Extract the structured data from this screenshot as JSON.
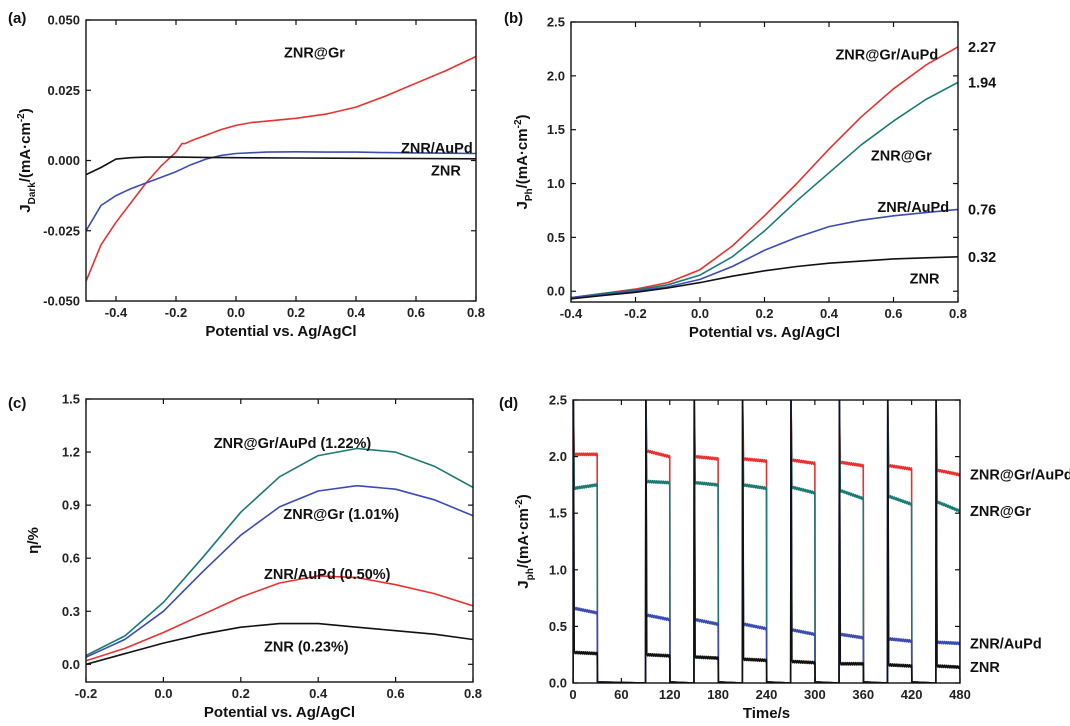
{
  "chart_data": [
    {
      "panel": "(a)",
      "type": "line",
      "ylabel_main": "J",
      "ylabel_sub": "Dark",
      "ylabel_rest": "/(mA·cm",
      "ylabel_sup": "-2",
      "ylabel_end": ")",
      "xlabel": "Potential vs. Ag/AgCl",
      "xlim": [
        -0.5,
        0.8
      ],
      "ylim": [
        -0.05,
        0.05
      ],
      "xticks": [
        -0.4,
        -0.2,
        0.0,
        0.2,
        0.4,
        0.6,
        0.8
      ],
      "xtick_labels": [
        "-0.4",
        "-0.2",
        "0.0",
        "0.2",
        "0.4",
        "0.6",
        "0.8"
      ],
      "yticks": [
        -0.05,
        -0.025,
        0.0,
        0.025,
        0.05
      ],
      "ytick_labels": [
        "-0.050",
        "-0.025",
        "0.000",
        "0.025",
        "0.050"
      ],
      "series": [
        {
          "name": "ZNR@Gr",
          "color": "#e8312f",
          "x": [
            -0.5,
            -0.45,
            -0.4,
            -0.35,
            -0.3,
            -0.25,
            -0.2,
            -0.18,
            -0.17,
            -0.15,
            -0.1,
            -0.05,
            0.0,
            0.05,
            0.1,
            0.2,
            0.3,
            0.4,
            0.5,
            0.6,
            0.7,
            0.8
          ],
          "y": [
            -0.043,
            -0.03,
            -0.022,
            -0.015,
            -0.008,
            -0.002,
            0.003,
            0.006,
            0.006,
            0.007,
            0.009,
            0.011,
            0.0125,
            0.0135,
            0.014,
            0.015,
            0.0165,
            0.019,
            0.023,
            0.0275,
            0.032,
            0.037
          ]
        },
        {
          "name": "ZNR/AuPd",
          "color": "#3b4bb0",
          "x": [
            -0.5,
            -0.45,
            -0.4,
            -0.35,
            -0.3,
            -0.25,
            -0.2,
            -0.15,
            -0.1,
            -0.05,
            0.0,
            0.1,
            0.2,
            0.3,
            0.4,
            0.5,
            0.6,
            0.7,
            0.8
          ],
          "y": [
            -0.025,
            -0.016,
            -0.0125,
            -0.01,
            -0.008,
            -0.006,
            -0.004,
            -0.0015,
            0.0005,
            0.0018,
            0.0025,
            0.003,
            0.0031,
            0.003,
            0.003,
            0.0028,
            0.0027,
            0.0026,
            0.0025
          ]
        },
        {
          "name": "ZNR",
          "color": "#111111",
          "x": [
            -0.5,
            -0.45,
            -0.4,
            -0.35,
            -0.3,
            -0.2,
            -0.1,
            0.0,
            0.2,
            0.4,
            0.6,
            0.8
          ],
          "y": [
            -0.005,
            -0.0025,
            0.0005,
            0.001,
            0.0012,
            0.0012,
            0.0011,
            0.001,
            0.0009,
            0.0008,
            0.0007,
            0.0006
          ]
        }
      ],
      "annotations": [
        {
          "text": "ZNR@Gr",
          "x": 0.16,
          "y": 0.0385
        },
        {
          "text": "ZNR/AuPd",
          "x": 0.55,
          "y": 0.0045
        },
        {
          "text": "ZNR",
          "x": 0.65,
          "y": -0.0035
        }
      ]
    },
    {
      "panel": "(b)",
      "type": "line",
      "ylabel_main": "J",
      "ylabel_sub": "Ph",
      "ylabel_rest": "/(mA·cm",
      "ylabel_sup": "-2",
      "ylabel_end": ")",
      "xlabel": "Potential vs. Ag/AgCl",
      "xlim": [
        -0.4,
        0.8
      ],
      "ylim": [
        -0.1,
        2.5
      ],
      "xticks": [
        -0.4,
        -0.2,
        0.0,
        0.2,
        0.4,
        0.6,
        0.8
      ],
      "xtick_labels": [
        "-0.4",
        "-0.2",
        "0.0",
        "0.2",
        "0.4",
        "0.6",
        "0.8"
      ],
      "yticks": [
        0.0,
        0.5,
        1.0,
        1.5,
        2.0,
        2.5
      ],
      "ytick_labels": [
        "0.0",
        "0.5",
        "1.0",
        "1.5",
        "2.0",
        "2.5"
      ],
      "series": [
        {
          "name": "ZNR@Gr/AuPd",
          "color": "#e8312f",
          "x": [
            -0.4,
            -0.3,
            -0.2,
            -0.1,
            0.0,
            0.1,
            0.2,
            0.3,
            0.4,
            0.5,
            0.6,
            0.7,
            0.8
          ],
          "y": [
            -0.06,
            -0.02,
            0.02,
            0.08,
            0.2,
            0.42,
            0.7,
            1.0,
            1.32,
            1.62,
            1.88,
            2.1,
            2.27
          ]
        },
        {
          "name": "ZNR@Gr",
          "color": "#1a7a72",
          "x": [
            -0.4,
            -0.3,
            -0.2,
            -0.1,
            0.0,
            0.1,
            0.2,
            0.3,
            0.4,
            0.5,
            0.6,
            0.7,
            0.8
          ],
          "y": [
            -0.06,
            -0.02,
            0.01,
            0.06,
            0.15,
            0.32,
            0.56,
            0.84,
            1.1,
            1.36,
            1.58,
            1.78,
            1.94
          ]
        },
        {
          "name": "ZNR/AuPd",
          "color": "#3b4bb0",
          "x": [
            -0.4,
            -0.3,
            -0.2,
            -0.1,
            0.0,
            0.1,
            0.2,
            0.3,
            0.4,
            0.5,
            0.6,
            0.7,
            0.8
          ],
          "y": [
            -0.06,
            -0.03,
            0.0,
            0.04,
            0.11,
            0.23,
            0.38,
            0.5,
            0.6,
            0.66,
            0.7,
            0.73,
            0.76
          ]
        },
        {
          "name": "ZNR",
          "color": "#111111",
          "x": [
            -0.4,
            -0.3,
            -0.2,
            -0.1,
            0.0,
            0.1,
            0.2,
            0.3,
            0.4,
            0.5,
            0.6,
            0.7,
            0.8
          ],
          "y": [
            -0.07,
            -0.04,
            -0.01,
            0.03,
            0.08,
            0.14,
            0.19,
            0.23,
            0.26,
            0.28,
            0.3,
            0.31,
            0.32
          ]
        }
      ],
      "annotations": [
        {
          "text": "ZNR@Gr/AuPd",
          "x": 0.42,
          "y": 2.2
        },
        {
          "text": "ZNR@Gr",
          "x": 0.53,
          "y": 1.26
        },
        {
          "text": "ZNR/AuPd",
          "x": 0.55,
          "y": 0.78
        },
        {
          "text": "ZNR",
          "x": 0.65,
          "y": 0.12
        },
        {
          "text": "2.27",
          "side": "right",
          "y": 2.27
        },
        {
          "text": "1.94",
          "side": "right",
          "y": 1.94
        },
        {
          "text": "0.76",
          "side": "right",
          "y": 0.76
        },
        {
          "text": "0.32",
          "side": "right",
          "y": 0.32
        }
      ]
    },
    {
      "panel": "(c)",
      "type": "line",
      "ylabel_main": "η/%",
      "xlabel": "Potential vs. Ag/AgCl",
      "xlim": [
        -0.2,
        0.8
      ],
      "ylim": [
        -0.1,
        1.5
      ],
      "xticks": [
        -0.2,
        0.0,
        0.2,
        0.4,
        0.6,
        0.8
      ],
      "xtick_labels": [
        "-0.2",
        "0.0",
        "0.2",
        "0.4",
        "0.6",
        "0.8"
      ],
      "yticks": [
        0.0,
        0.3,
        0.6,
        0.9,
        1.2,
        1.5
      ],
      "ytick_labels": [
        "0.0",
        "0.3",
        "0.6",
        "0.9",
        "1.2",
        "1.5"
      ],
      "series": [
        {
          "name": "ZNR@Gr/AuPd",
          "color": "#1a7a72",
          "x": [
            -0.2,
            -0.1,
            0.0,
            0.1,
            0.2,
            0.3,
            0.4,
            0.5,
            0.6,
            0.7,
            0.8
          ],
          "y": [
            0.05,
            0.16,
            0.35,
            0.6,
            0.86,
            1.06,
            1.18,
            1.22,
            1.2,
            1.12,
            1.0
          ]
        },
        {
          "name": "ZNR@Gr",
          "color": "#3b4bb0",
          "x": [
            -0.2,
            -0.1,
            0.0,
            0.1,
            0.2,
            0.3,
            0.4,
            0.5,
            0.6,
            0.7,
            0.8
          ],
          "y": [
            0.04,
            0.14,
            0.3,
            0.52,
            0.73,
            0.89,
            0.98,
            1.01,
            0.99,
            0.93,
            0.84
          ]
        },
        {
          "name": "ZNR/AuPd",
          "color": "#e8312f",
          "x": [
            -0.2,
            -0.1,
            0.0,
            0.1,
            0.2,
            0.3,
            0.4,
            0.5,
            0.6,
            0.7,
            0.8
          ],
          "y": [
            0.02,
            0.09,
            0.18,
            0.28,
            0.38,
            0.46,
            0.5,
            0.49,
            0.45,
            0.4,
            0.33
          ]
        },
        {
          "name": "ZNR",
          "color": "#111111",
          "x": [
            -0.2,
            -0.1,
            0.0,
            0.1,
            0.2,
            0.3,
            0.4,
            0.5,
            0.6,
            0.7,
            0.8
          ],
          "y": [
            0.0,
            0.06,
            0.12,
            0.17,
            0.21,
            0.23,
            0.23,
            0.21,
            0.19,
            0.17,
            0.14
          ]
        }
      ],
      "annotations": [
        {
          "text": "ZNR@Gr/AuPd (1.22%)",
          "x": 0.13,
          "y": 1.25
        },
        {
          "text": "ZNR@Gr (1.01%)",
          "x": 0.31,
          "y": 0.85
        },
        {
          "text": "ZNR/AuPd (0.50%)",
          "x": 0.26,
          "y": 0.51
        },
        {
          "text": "ZNR (0.23%)",
          "x": 0.26,
          "y": 0.1
        }
      ]
    },
    {
      "panel": "(d)",
      "type": "line",
      "ylabel_main": "J",
      "ylabel_sub": "ph",
      "ylabel_rest": "/(mA·cm",
      "ylabel_sup": "-2",
      "ylabel_end": ")",
      "xlabel": "Time/s",
      "xlim": [
        0,
        480
      ],
      "ylim": [
        0,
        2.5
      ],
      "xticks": [
        0,
        60,
        120,
        180,
        240,
        300,
        360,
        420,
        480
      ],
      "xtick_labels": [
        "0",
        "60",
        "120",
        "180",
        "240",
        "300",
        "360",
        "420",
        "480"
      ],
      "yticks": [
        0.0,
        0.5,
        1.0,
        1.5,
        2.0,
        2.5
      ],
      "ytick_labels": [
        "0.0",
        "0.5",
        "1.0",
        "1.5",
        "2.0",
        "2.5"
      ],
      "on_intervals": [
        [
          0,
          30
        ],
        [
          90,
          120
        ],
        [
          150,
          180
        ],
        [
          210,
          240
        ],
        [
          270,
          300
        ],
        [
          330,
          360
        ],
        [
          390,
          420
        ],
        [
          450,
          480
        ]
      ],
      "series": [
        {
          "name": "ZNR@Gr/AuPd",
          "color": "#e8312f",
          "plateau_start": [
            2.02,
            2.05,
            2.0,
            1.98,
            1.97,
            1.95,
            1.92,
            1.88
          ],
          "plateau_end": [
            2.02,
            2.0,
            1.98,
            1.96,
            1.94,
            1.92,
            1.89,
            1.84
          ]
        },
        {
          "name": "ZNR@Gr",
          "color": "#1a7a72",
          "plateau_start": [
            1.72,
            1.78,
            1.77,
            1.75,
            1.73,
            1.7,
            1.65,
            1.6
          ],
          "plateau_end": [
            1.75,
            1.77,
            1.75,
            1.72,
            1.68,
            1.63,
            1.58,
            1.52
          ]
        },
        {
          "name": "ZNR/AuPd",
          "color": "#3b4bb0",
          "plateau_start": [
            0.66,
            0.6,
            0.56,
            0.52,
            0.47,
            0.43,
            0.39,
            0.36
          ],
          "plateau_end": [
            0.62,
            0.56,
            0.52,
            0.48,
            0.43,
            0.4,
            0.37,
            0.35
          ]
        },
        {
          "name": "ZNR",
          "color": "#111111",
          "plateau_start": [
            0.27,
            0.25,
            0.23,
            0.21,
            0.19,
            0.17,
            0.16,
            0.15
          ],
          "plateau_end": [
            0.26,
            0.24,
            0.22,
            0.2,
            0.18,
            0.17,
            0.15,
            0.14
          ]
        }
      ],
      "annotations": [
        {
          "text": "ZNR@Gr/AuPd",
          "side": "right",
          "y": 1.84
        },
        {
          "text": "ZNR@Gr",
          "side": "right",
          "y": 1.52
        },
        {
          "text": "ZNR/AuPd",
          "side": "right",
          "y": 0.35
        },
        {
          "text": "ZNR",
          "side": "right",
          "y": 0.14
        }
      ]
    }
  ]
}
